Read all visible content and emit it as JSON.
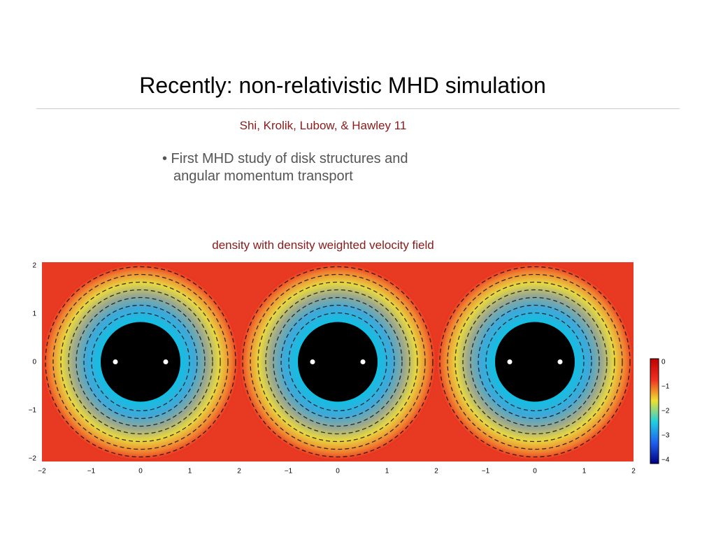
{
  "slide": {
    "title": "Recently: non-relativistic MHD simulation",
    "citation": "Shi, Krolik, Lubow, & Hawley 11",
    "bullet_lines": [
      "• First MHD study of disk structures and",
      "angular momentum transport"
    ],
    "caption": "density with density weighted velocity field",
    "y_ticks": [
      "2",
      "1",
      "0",
      "−1",
      "−2"
    ],
    "panels": [
      {
        "x_ticks": [
          "−2",
          "−1",
          "0",
          "1",
          "2"
        ]
      },
      {
        "x_ticks": [
          "−1",
          "0",
          "1",
          "2"
        ]
      },
      {
        "x_ticks": [
          "−1",
          "0",
          "1",
          "2"
        ]
      }
    ],
    "colorbar_ticks": [
      "0",
      "−1",
      "−2",
      "−3",
      "−4"
    ]
  }
}
